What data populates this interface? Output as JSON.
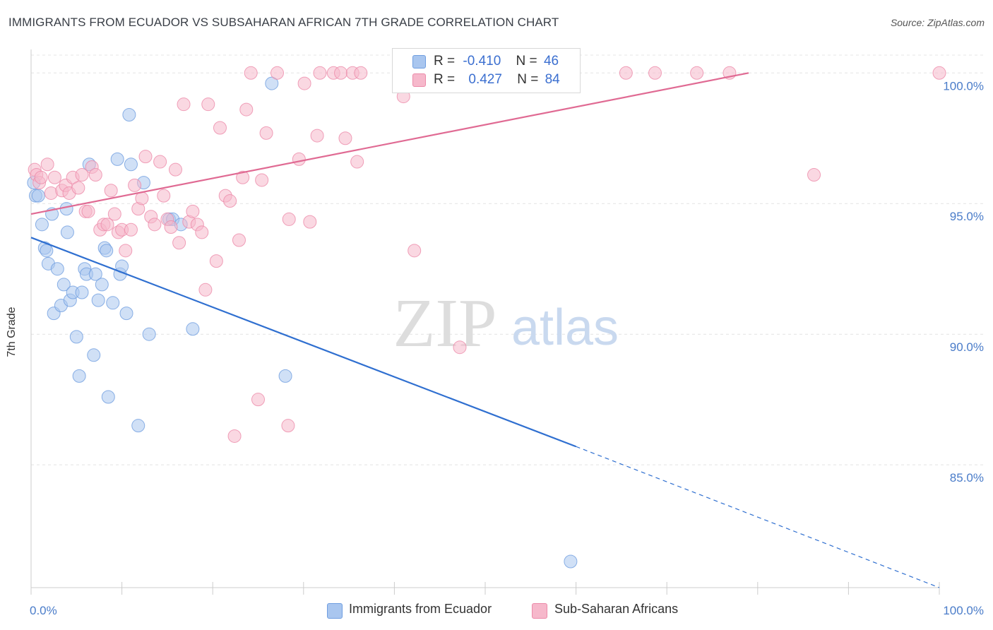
{
  "header": {
    "title": "IMMIGRANTS FROM ECUADOR VS SUBSAHARAN AFRICAN 7TH GRADE CORRELATION CHART",
    "source": "Source: ZipAtlas.com"
  },
  "watermark": {
    "zip": "ZIP",
    "atlas": "atlas"
  },
  "legend": {
    "rows": [
      {
        "r_label": "R =",
        "r_value": "-0.410",
        "n_label": "N =",
        "n_value": "46",
        "color": "#a9c6ef",
        "edge": "#6f9ee0"
      },
      {
        "r_label": "R =",
        "r_value": "0.427",
        "n_label": "N =",
        "n_value": "84",
        "color": "#f6b8cb",
        "edge": "#ec8aa9"
      }
    ]
  },
  "bottom_legend": {
    "items": [
      {
        "label": "Immigrants from Ecuador",
        "color": "#a9c6ef"
      },
      {
        "label": "Sub-Saharan Africans",
        "color": "#f6b8cb"
      }
    ]
  },
  "chart_data": {
    "type": "scatter",
    "title": "IMMIGRANTS FROM ECUADOR VS SUBSAHARAN AFRICAN 7TH GRADE CORRELATION CHART",
    "xlabel": "",
    "ylabel": "7th Grade",
    "xlim": [
      0,
      100
    ],
    "ylim": [
      80.3,
      100.9
    ],
    "x_ticks": [
      "0.0%",
      "100.0%"
    ],
    "y_ticks": [
      {
        "value": 100,
        "label": "100.0%"
      },
      {
        "value": 95,
        "label": "95.0%"
      },
      {
        "value": 90,
        "label": "90.0%"
      },
      {
        "value": 85,
        "label": "85.0%"
      }
    ],
    "grid": true,
    "series": [
      {
        "name": "Immigrants from Ecuador",
        "color": "#a9c6ef",
        "edge": "#6f9ee0",
        "line_color": "#2f6fd0",
        "trend": {
          "x0": 0,
          "y0": 93.7,
          "x1": 60,
          "y1": 85.7,
          "dash_to_x": 100,
          "dash_to_y": 80.3
        },
        "points": [
          [
            0.3,
            95.8
          ],
          [
            0.5,
            95.3
          ],
          [
            0.8,
            95.3
          ],
          [
            1.2,
            94.2
          ],
          [
            1.5,
            93.3
          ],
          [
            1.7,
            93.2
          ],
          [
            1.9,
            92.7
          ],
          [
            2.3,
            94.6
          ],
          [
            2.5,
            90.8
          ],
          [
            2.9,
            92.5
          ],
          [
            3.3,
            91.1
          ],
          [
            3.6,
            91.9
          ],
          [
            3.9,
            94.8
          ],
          [
            4.0,
            93.9
          ],
          [
            4.3,
            91.3
          ],
          [
            4.6,
            91.6
          ],
          [
            5.0,
            89.9
          ],
          [
            5.3,
            88.4
          ],
          [
            5.6,
            91.6
          ],
          [
            5.9,
            92.5
          ],
          [
            6.1,
            92.3
          ],
          [
            6.4,
            96.5
          ],
          [
            6.9,
            89.2
          ],
          [
            7.1,
            92.3
          ],
          [
            7.4,
            91.3
          ],
          [
            7.8,
            91.9
          ],
          [
            8.1,
            93.3
          ],
          [
            8.3,
            93.2
          ],
          [
            8.5,
            87.6
          ],
          [
            9.0,
            91.2
          ],
          [
            9.5,
            96.7
          ],
          [
            9.8,
            92.3
          ],
          [
            10.0,
            92.6
          ],
          [
            10.5,
            90.8
          ],
          [
            10.8,
            98.4
          ],
          [
            11.0,
            96.5
          ],
          [
            11.8,
            86.5
          ],
          [
            12.4,
            95.8
          ],
          [
            13.0,
            90.0
          ],
          [
            15.2,
            94.4
          ],
          [
            15.6,
            94.4
          ],
          [
            16.5,
            94.2
          ],
          [
            17.8,
            90.2
          ],
          [
            26.5,
            99.6
          ],
          [
            28.0,
            88.4
          ],
          [
            59.4,
            81.3
          ]
        ]
      },
      {
        "name": "Sub-Saharan Africans",
        "color": "#f6b8cb",
        "edge": "#ec8aa9",
        "line_color": "#e06a93",
        "trend": {
          "x0": 0,
          "y0": 94.6,
          "x1": 79,
          "y1": 100
        },
        "points": [
          [
            0.4,
            96.3
          ],
          [
            0.6,
            96.1
          ],
          [
            0.9,
            95.8
          ],
          [
            1.1,
            96.0
          ],
          [
            1.8,
            96.5
          ],
          [
            2.2,
            95.4
          ],
          [
            2.6,
            96.0
          ],
          [
            3.4,
            95.5
          ],
          [
            3.8,
            95.7
          ],
          [
            4.2,
            95.4
          ],
          [
            4.6,
            96.0
          ],
          [
            5.2,
            95.6
          ],
          [
            5.6,
            96.1
          ],
          [
            6.0,
            94.7
          ],
          [
            6.3,
            94.7
          ],
          [
            6.7,
            96.4
          ],
          [
            7.1,
            96.1
          ],
          [
            7.6,
            94.0
          ],
          [
            8.0,
            94.2
          ],
          [
            8.4,
            94.2
          ],
          [
            8.8,
            95.5
          ],
          [
            9.2,
            94.6
          ],
          [
            9.6,
            93.9
          ],
          [
            10.0,
            94.0
          ],
          [
            10.4,
            93.2
          ],
          [
            11.0,
            94.0
          ],
          [
            11.4,
            95.7
          ],
          [
            11.8,
            94.8
          ],
          [
            12.2,
            95.2
          ],
          [
            12.6,
            96.8
          ],
          [
            13.2,
            94.5
          ],
          [
            13.6,
            94.2
          ],
          [
            14.2,
            96.6
          ],
          [
            14.6,
            95.3
          ],
          [
            15.0,
            94.4
          ],
          [
            15.4,
            94.1
          ],
          [
            15.9,
            96.3
          ],
          [
            16.3,
            93.5
          ],
          [
            16.8,
            98.8
          ],
          [
            17.4,
            94.3
          ],
          [
            17.8,
            94.7
          ],
          [
            18.3,
            94.2
          ],
          [
            18.8,
            93.9
          ],
          [
            19.2,
            91.7
          ],
          [
            19.5,
            98.8
          ],
          [
            20.4,
            92.8
          ],
          [
            20.8,
            97.9
          ],
          [
            21.4,
            95.3
          ],
          [
            21.9,
            95.1
          ],
          [
            22.4,
            86.1
          ],
          [
            22.9,
            93.6
          ],
          [
            23.3,
            96.0
          ],
          [
            23.7,
            98.6
          ],
          [
            24.2,
            100.0
          ],
          [
            25.0,
            87.5
          ],
          [
            25.4,
            95.9
          ],
          [
            25.9,
            97.7
          ],
          [
            27.1,
            100.0
          ],
          [
            28.3,
            86.5
          ],
          [
            28.4,
            94.4
          ],
          [
            29.5,
            96.7
          ],
          [
            30.1,
            99.6
          ],
          [
            30.7,
            94.3
          ],
          [
            31.5,
            97.6
          ],
          [
            31.8,
            100.0
          ],
          [
            33.3,
            100.0
          ],
          [
            34.1,
            100.0
          ],
          [
            34.6,
            97.5
          ],
          [
            35.4,
            100.0
          ],
          [
            35.9,
            96.6
          ],
          [
            36.3,
            100.0
          ],
          [
            40.6,
            100.0
          ],
          [
            41.0,
            99.1
          ],
          [
            42.2,
            93.2
          ],
          [
            47.2,
            89.5
          ],
          [
            47.5,
            100.0
          ],
          [
            52.2,
            100.0
          ],
          [
            55.9,
            100.0
          ],
          [
            65.5,
            100.0
          ],
          [
            68.7,
            100.0
          ],
          [
            73.3,
            100.0
          ],
          [
            76.9,
            100.0
          ],
          [
            86.2,
            96.1
          ],
          [
            100.0,
            100.0
          ]
        ]
      }
    ]
  }
}
